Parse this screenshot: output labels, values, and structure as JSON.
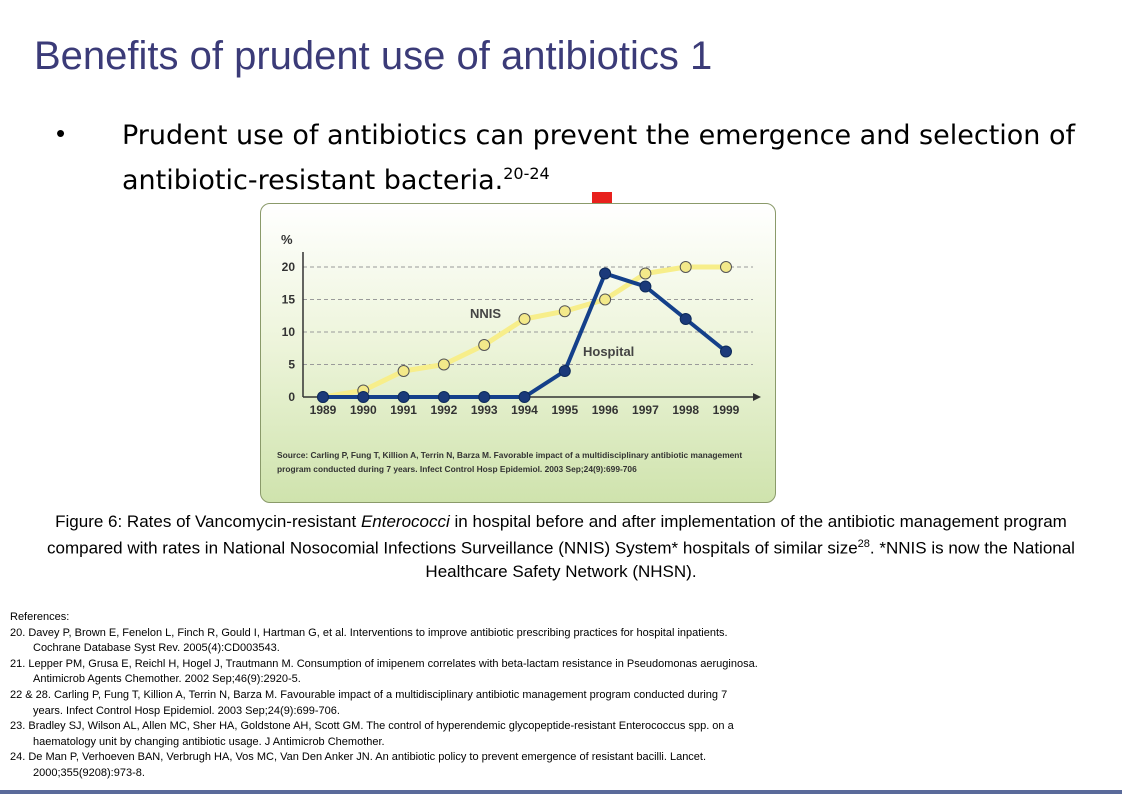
{
  "slide": {
    "title": "Benefits of prudent use of antibiotics 1",
    "bullet_symbol": "•",
    "bullet_text": "Prudent use of antibiotics can prevent the emergence and selection of antibiotic-resistant bacteria.",
    "bullet_superscript": "20-24"
  },
  "figure": {
    "source_text": "Source: Carling P, Fung T, Killion A, Terrin N, Barza M. Favorable impact of a multidisciplinary antibiotic management program conducted during 7 years. Infect Control Hosp Epidemiol. 2003 Sep;24(9):699-706",
    "caption_part1": "Figure 6: Rates of Vancomycin-resistant ",
    "caption_italic": "Enterococci",
    "caption_part2": " in hospital before and after implementation of the antibiotic management program compared with rates in National Nosocomial Infections Surveillance (NNIS) System* hospitals of similar size",
    "caption_superscript": "28",
    "caption_part3": ". *NNIS is now the National Healthcare Safety Network (NHSN)."
  },
  "chart_data": {
    "type": "line",
    "ylabel": "%",
    "ylim": [
      0,
      22
    ],
    "yticks": [
      0,
      5,
      10,
      15,
      20
    ],
    "categories": [
      "1989",
      "1990",
      "1991",
      "1992",
      "1993",
      "1994",
      "1995",
      "1996",
      "1997",
      "1998",
      "1999"
    ],
    "grid": "horizontal dashed",
    "series": [
      {
        "name": "NNIS",
        "color": "#f7ee8a",
        "marker_fill": "#f3e98a",
        "values": [
          0,
          1,
          4,
          5,
          8,
          12,
          13.2,
          15,
          19,
          20,
          20
        ]
      },
      {
        "name": "Hospital",
        "color": "#14408a",
        "marker_fill": "#1b3a7a",
        "values": [
          0,
          0,
          0,
          0,
          0,
          0,
          4,
          19,
          17,
          12,
          7
        ]
      }
    ],
    "highlight": {
      "category": "1996",
      "marker": "red-down-arrow",
      "color": "#e8211d"
    }
  },
  "references": {
    "heading": "References:",
    "items": [
      {
        "num": "20.",
        "line1": "Davey P, Brown E, Fenelon L, Finch R, Gould I, Hartman G, et al. Interventions to improve antibiotic prescribing practices for hospital inpatients.",
        "line2": "Cochrane Database Syst Rev. 2005(4):CD003543."
      },
      {
        "num": "21.",
        "line1": "Lepper PM, Grusa E, Reichl H, Hogel J, Trautmann M. Consumption of imipenem correlates with beta-lactam resistance in Pseudomonas aeruginosa.",
        "line2": "Antimicrob Agents Chemother. 2002 Sep;46(9):2920-5."
      },
      {
        "num": "22 & 28.",
        "line1": "Carling P, Fung T, Killion A, Terrin N, Barza M. Favourable impact of a multidisciplinary antibiotic management program conducted during 7",
        "line2": "years. Infect Control Hosp Epidemiol. 2003 Sep;24(9):699-706."
      },
      {
        "num": "23.",
        "line1": "Bradley SJ, Wilson AL, Allen MC, Sher HA, Goldstone AH, Scott GM. The control of hyperendemic glycopeptide-resistant Enterococcus spp. on a",
        "line2": "haematology unit by changing antibiotic usage. J Antimicrob Chemother."
      },
      {
        "num": "24.",
        "line1": "De Man P, Verhoeven BAN, Verbrugh HA, Vos MC, Van Den Anker JN. An antibiotic policy to prevent emergence of resistant bacilli. Lancet.",
        "line2": "2000;355(9208):973-8."
      }
    ]
  }
}
